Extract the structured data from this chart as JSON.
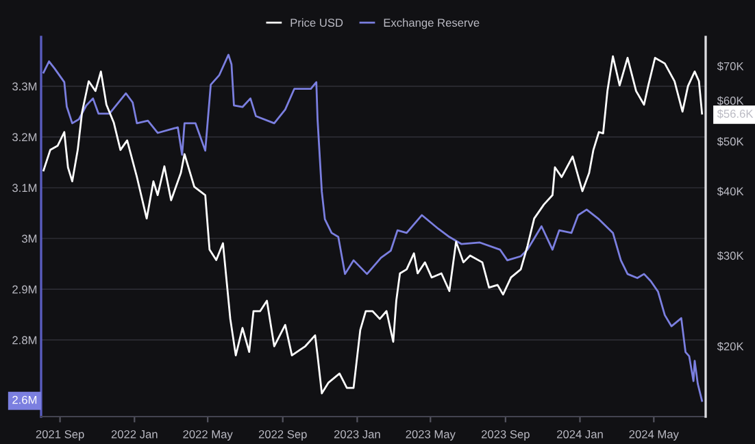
{
  "chart_data": {
    "type": "line",
    "legend": "top",
    "grid": "y",
    "log": "y2",
    "line_style": "solid",
    "marker": "none",
    "xlim": [
      "2021-08-01",
      "2024-07-25"
    ],
    "xticks": [
      {
        "value": "2021-09-01",
        "label": "2021 Sep"
      },
      {
        "value": "2022-01-01",
        "label": "2022 Jan"
      },
      {
        "value": "2022-05-01",
        "label": "2022 May"
      },
      {
        "value": "2022-09-01",
        "label": "2022 Sep"
      },
      {
        "value": "2023-01-01",
        "label": "2023 Jan"
      },
      {
        "value": "2023-05-01",
        "label": "2023 May"
      },
      {
        "value": "2023-09-01",
        "label": "2023 Sep"
      },
      {
        "value": "2024-01-01",
        "label": "2024 Jan"
      },
      {
        "value": "2024-05-01",
        "label": "2024 May"
      }
    ],
    "ylim": [
      2.649,
      3.397
    ],
    "annotations": [
      "2.6M"
    ],
    "yticks": [
      {
        "value": 2.8,
        "label": "2.8M"
      },
      {
        "value": 2.9,
        "label": "2.9M"
      },
      {
        "value": 3.0,
        "label": "3M"
      },
      {
        "value": 3.1,
        "label": "3.1M"
      },
      {
        "value": 3.2,
        "label": "3.2M"
      },
      {
        "value": 3.3,
        "label": "3.3M"
      }
    ],
    "y2lim": [
      14.6,
      79.7
    ],
    "y2ticks": [
      {
        "value": 20,
        "label": "$20K"
      },
      {
        "value": 30,
        "label": "$30K"
      },
      {
        "value": 40,
        "label": "$40K"
      },
      {
        "value": 50,
        "label": "$50K"
      },
      {
        "value": 56.6,
        "label": "$56.6K"
      },
      {
        "value": 60,
        "label": "$60K"
      },
      {
        "value": 70,
        "label": "$70K"
      }
    ],
    "series": [
      {
        "name": "Price USD",
        "color": "#ffffff",
        "axis": "y2",
        "x": [
          "2021-08-05",
          "2021-08-16",
          "2021-08-28",
          "2021-09-08",
          "2021-09-14",
          "2021-09-21",
          "2021-09-30",
          "2021-10-07",
          "2021-10-18",
          "2021-10-29",
          "2021-11-07",
          "2021-11-16",
          "2021-11-28",
          "2021-12-09",
          "2021-12-20",
          "2022-01-05",
          "2022-01-21",
          "2022-02-01",
          "2022-02-08",
          "2022-02-19",
          "2022-03-02",
          "2022-03-18",
          "2022-03-24",
          "2022-04-09",
          "2022-04-27",
          "2022-05-04",
          "2022-05-15",
          "2022-05-26",
          "2022-06-07",
          "2022-06-16",
          "2022-06-27",
          "2022-07-08",
          "2022-07-15",
          "2022-07-26",
          "2022-08-06",
          "2022-08-18",
          "2022-09-05",
          "2022-09-16",
          "2022-10-08",
          "2022-10-24",
          "2022-10-28",
          "2022-11-04",
          "2022-11-15",
          "2022-12-03",
          "2022-12-15",
          "2022-12-26",
          "2023-01-06",
          "2023-01-15",
          "2023-01-26",
          "2023-02-07",
          "2023-02-18",
          "2023-03-01",
          "2023-03-06",
          "2023-03-12",
          "2023-03-23",
          "2023-04-04",
          "2023-04-10",
          "2023-04-22",
          "2023-05-03",
          "2023-05-19",
          "2023-06-01",
          "2023-06-12",
          "2023-06-24",
          "2023-07-05",
          "2023-07-25",
          "2023-08-05",
          "2023-08-19",
          "2023-08-28",
          "2023-09-10",
          "2023-09-26",
          "2023-10-07",
          "2023-10-18",
          "2023-11-03",
          "2023-11-17",
          "2023-11-21",
          "2023-12-02",
          "2023-12-20",
          "2024-01-05",
          "2024-01-16",
          "2024-01-23",
          "2024-02-01",
          "2024-02-08",
          "2024-02-15",
          "2024-02-24",
          "2024-03-06",
          "2024-03-19",
          "2024-04-02",
          "2024-04-15",
          "2024-04-22",
          "2024-05-03",
          "2024-05-19",
          "2024-06-04",
          "2024-06-17",
          "2024-06-26",
          "2024-07-07",
          "2024-07-14",
          "2024-07-19"
        ],
        "values": [
          43.9,
          48.1,
          49.0,
          52.1,
          44.5,
          41.8,
          48.1,
          56.8,
          65.4,
          62.6,
          68.3,
          58.9,
          54.4,
          48.1,
          50.2,
          42.6,
          35.4,
          41.8,
          39.3,
          44.7,
          38.4,
          43.4,
          47.2,
          40.8,
          39.3,
          30.8,
          29.4,
          31.7,
          22.6,
          19.2,
          21.7,
          19.5,
          23.4,
          23.4,
          24.5,
          20.0,
          22.0,
          19.2,
          20.0,
          21.0,
          19.2,
          16.2,
          17.0,
          17.7,
          16.6,
          16.6,
          21.5,
          23.4,
          23.4,
          22.6,
          23.4,
          20.4,
          24.5,
          27.7,
          28.2,
          30.3,
          27.7,
          29.1,
          27.2,
          27.7,
          25.6,
          31.9,
          29.1,
          30.0,
          29.1,
          26.0,
          26.3,
          25.2,
          27.2,
          28.2,
          31.3,
          35.4,
          37.7,
          39.3,
          44.5,
          42.6,
          46.7,
          40.0,
          43.4,
          48.1,
          52.1,
          51.8,
          62.6,
          73.1,
          64.2,
          72.6,
          62.6,
          58.9,
          64.2,
          72.6,
          70.8,
          65.4,
          57.1,
          64.0,
          68.3,
          65.4,
          56.6
        ]
      },
      {
        "name": "Exchange Reserve",
        "color": "#7b7fe0",
        "x": [
          "2021-08-05",
          "2021-08-14",
          "2021-08-23",
          "2021-09-08",
          "2021-09-12",
          "2021-09-21",
          "2021-10-02",
          "2021-10-14",
          "2021-10-25",
          "2021-11-03",
          "2021-11-21",
          "2021-12-18",
          "2021-12-29",
          "2022-01-05",
          "2022-01-23",
          "2022-02-08",
          "2022-03-13",
          "2022-03-20",
          "2022-03-24",
          "2022-04-11",
          "2022-04-27",
          "2022-05-06",
          "2022-05-20",
          "2022-06-04",
          "2022-06-09",
          "2022-06-13",
          "2022-06-27",
          "2022-07-10",
          "2022-07-19",
          "2022-08-18",
          "2022-09-05",
          "2022-09-20",
          "2022-10-17",
          "2022-10-26",
          "2022-10-28",
          "2022-11-04",
          "2022-11-09",
          "2022-11-20",
          "2022-12-01",
          "2022-12-12",
          "2022-12-26",
          "2023-01-17",
          "2023-02-09",
          "2023-02-25",
          "2023-03-08",
          "2023-03-23",
          "2023-04-17",
          "2023-05-14",
          "2023-06-01",
          "2023-06-21",
          "2023-07-21",
          "2023-08-23",
          "2023-09-04",
          "2023-09-26",
          "2023-10-07",
          "2023-10-30",
          "2023-11-17",
          "2023-11-28",
          "2023-12-18",
          "2023-12-29",
          "2024-01-12",
          "2024-02-01",
          "2024-02-24",
          "2024-03-08",
          "2024-03-19",
          "2024-04-04",
          "2024-04-15",
          "2024-04-26",
          "2024-05-08",
          "2024-05-19",
          "2024-05-30",
          "2024-06-15",
          "2024-06-22",
          "2024-06-28",
          "2024-07-05",
          "2024-07-07",
          "2024-07-12",
          "2024-07-19"
        ],
        "values": [
          3.327,
          3.349,
          3.335,
          3.308,
          3.26,
          3.227,
          3.235,
          3.262,
          3.276,
          3.246,
          3.246,
          3.286,
          3.268,
          3.227,
          3.232,
          3.208,
          3.219,
          3.165,
          3.227,
          3.227,
          3.173,
          3.303,
          3.322,
          3.362,
          3.343,
          3.262,
          3.259,
          3.276,
          3.241,
          3.227,
          3.254,
          3.295,
          3.295,
          3.308,
          3.235,
          3.092,
          3.038,
          3.011,
          3.003,
          2.93,
          2.957,
          2.93,
          2.962,
          2.976,
          3.016,
          3.011,
          3.046,
          3.019,
          3.003,
          2.989,
          2.992,
          2.978,
          2.957,
          2.965,
          2.978,
          3.024,
          2.978,
          3.016,
          3.011,
          3.046,
          3.057,
          3.038,
          3.011,
          2.957,
          2.93,
          2.922,
          2.93,
          2.916,
          2.895,
          2.849,
          2.827,
          2.843,
          2.776,
          2.768,
          2.719,
          2.759,
          2.714,
          2.68
        ]
      }
    ]
  }
}
